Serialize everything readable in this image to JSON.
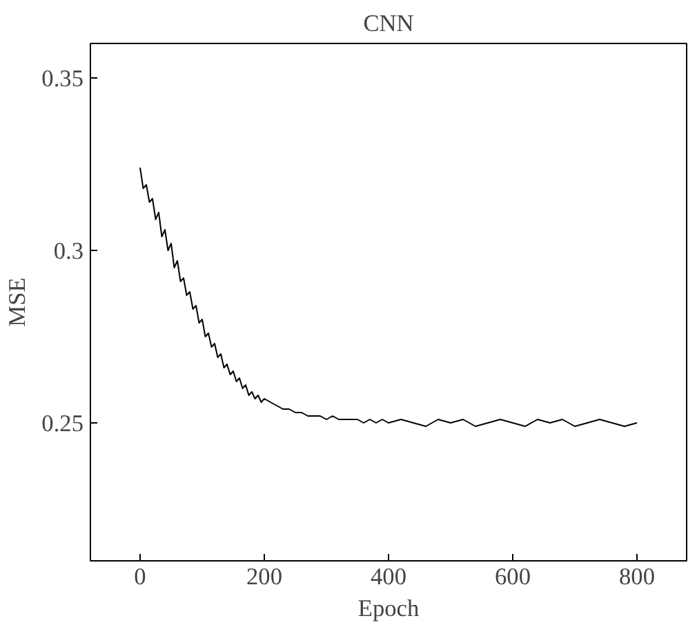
{
  "chart_data": {
    "type": "line",
    "title": "CNN",
    "xlabel": "Epoch",
    "ylabel": "MSE",
    "xlim": [
      -80,
      880
    ],
    "ylim": [
      0.21,
      0.36
    ],
    "xticks": [
      0,
      200,
      400,
      600,
      800
    ],
    "yticks": [
      0.25,
      0.3,
      0.35
    ],
    "grid": false,
    "marker": "none",
    "line_style": "solid",
    "series": [
      {
        "color": "#000000",
        "x": [
          0,
          5,
          10,
          15,
          20,
          25,
          30,
          35,
          40,
          45,
          50,
          55,
          60,
          65,
          70,
          75,
          80,
          85,
          90,
          95,
          100,
          105,
          110,
          115,
          120,
          125,
          130,
          135,
          140,
          145,
          150,
          155,
          160,
          165,
          170,
          175,
          180,
          185,
          190,
          195,
          200,
          210,
          220,
          230,
          240,
          250,
          260,
          270,
          280,
          290,
          300,
          310,
          320,
          330,
          340,
          350,
          360,
          370,
          380,
          390,
          400,
          420,
          440,
          460,
          480,
          500,
          520,
          540,
          560,
          580,
          600,
          620,
          640,
          660,
          680,
          700,
          720,
          740,
          760,
          780,
          800
        ],
        "values": [
          0.324,
          0.318,
          0.319,
          0.314,
          0.315,
          0.309,
          0.311,
          0.304,
          0.306,
          0.3,
          0.302,
          0.295,
          0.297,
          0.291,
          0.292,
          0.287,
          0.288,
          0.283,
          0.284,
          0.279,
          0.28,
          0.275,
          0.276,
          0.272,
          0.273,
          0.269,
          0.27,
          0.266,
          0.267,
          0.264,
          0.265,
          0.262,
          0.263,
          0.26,
          0.261,
          0.258,
          0.259,
          0.257,
          0.258,
          0.256,
          0.257,
          0.256,
          0.255,
          0.254,
          0.254,
          0.253,
          0.253,
          0.252,
          0.252,
          0.252,
          0.251,
          0.252,
          0.251,
          0.251,
          0.251,
          0.251,
          0.25,
          0.251,
          0.25,
          0.251,
          0.25,
          0.251,
          0.25,
          0.249,
          0.251,
          0.25,
          0.251,
          0.249,
          0.25,
          0.251,
          0.25,
          0.249,
          0.251,
          0.25,
          0.251,
          0.249,
          0.25,
          0.251,
          0.25,
          0.249,
          0.25
        ]
      }
    ]
  }
}
